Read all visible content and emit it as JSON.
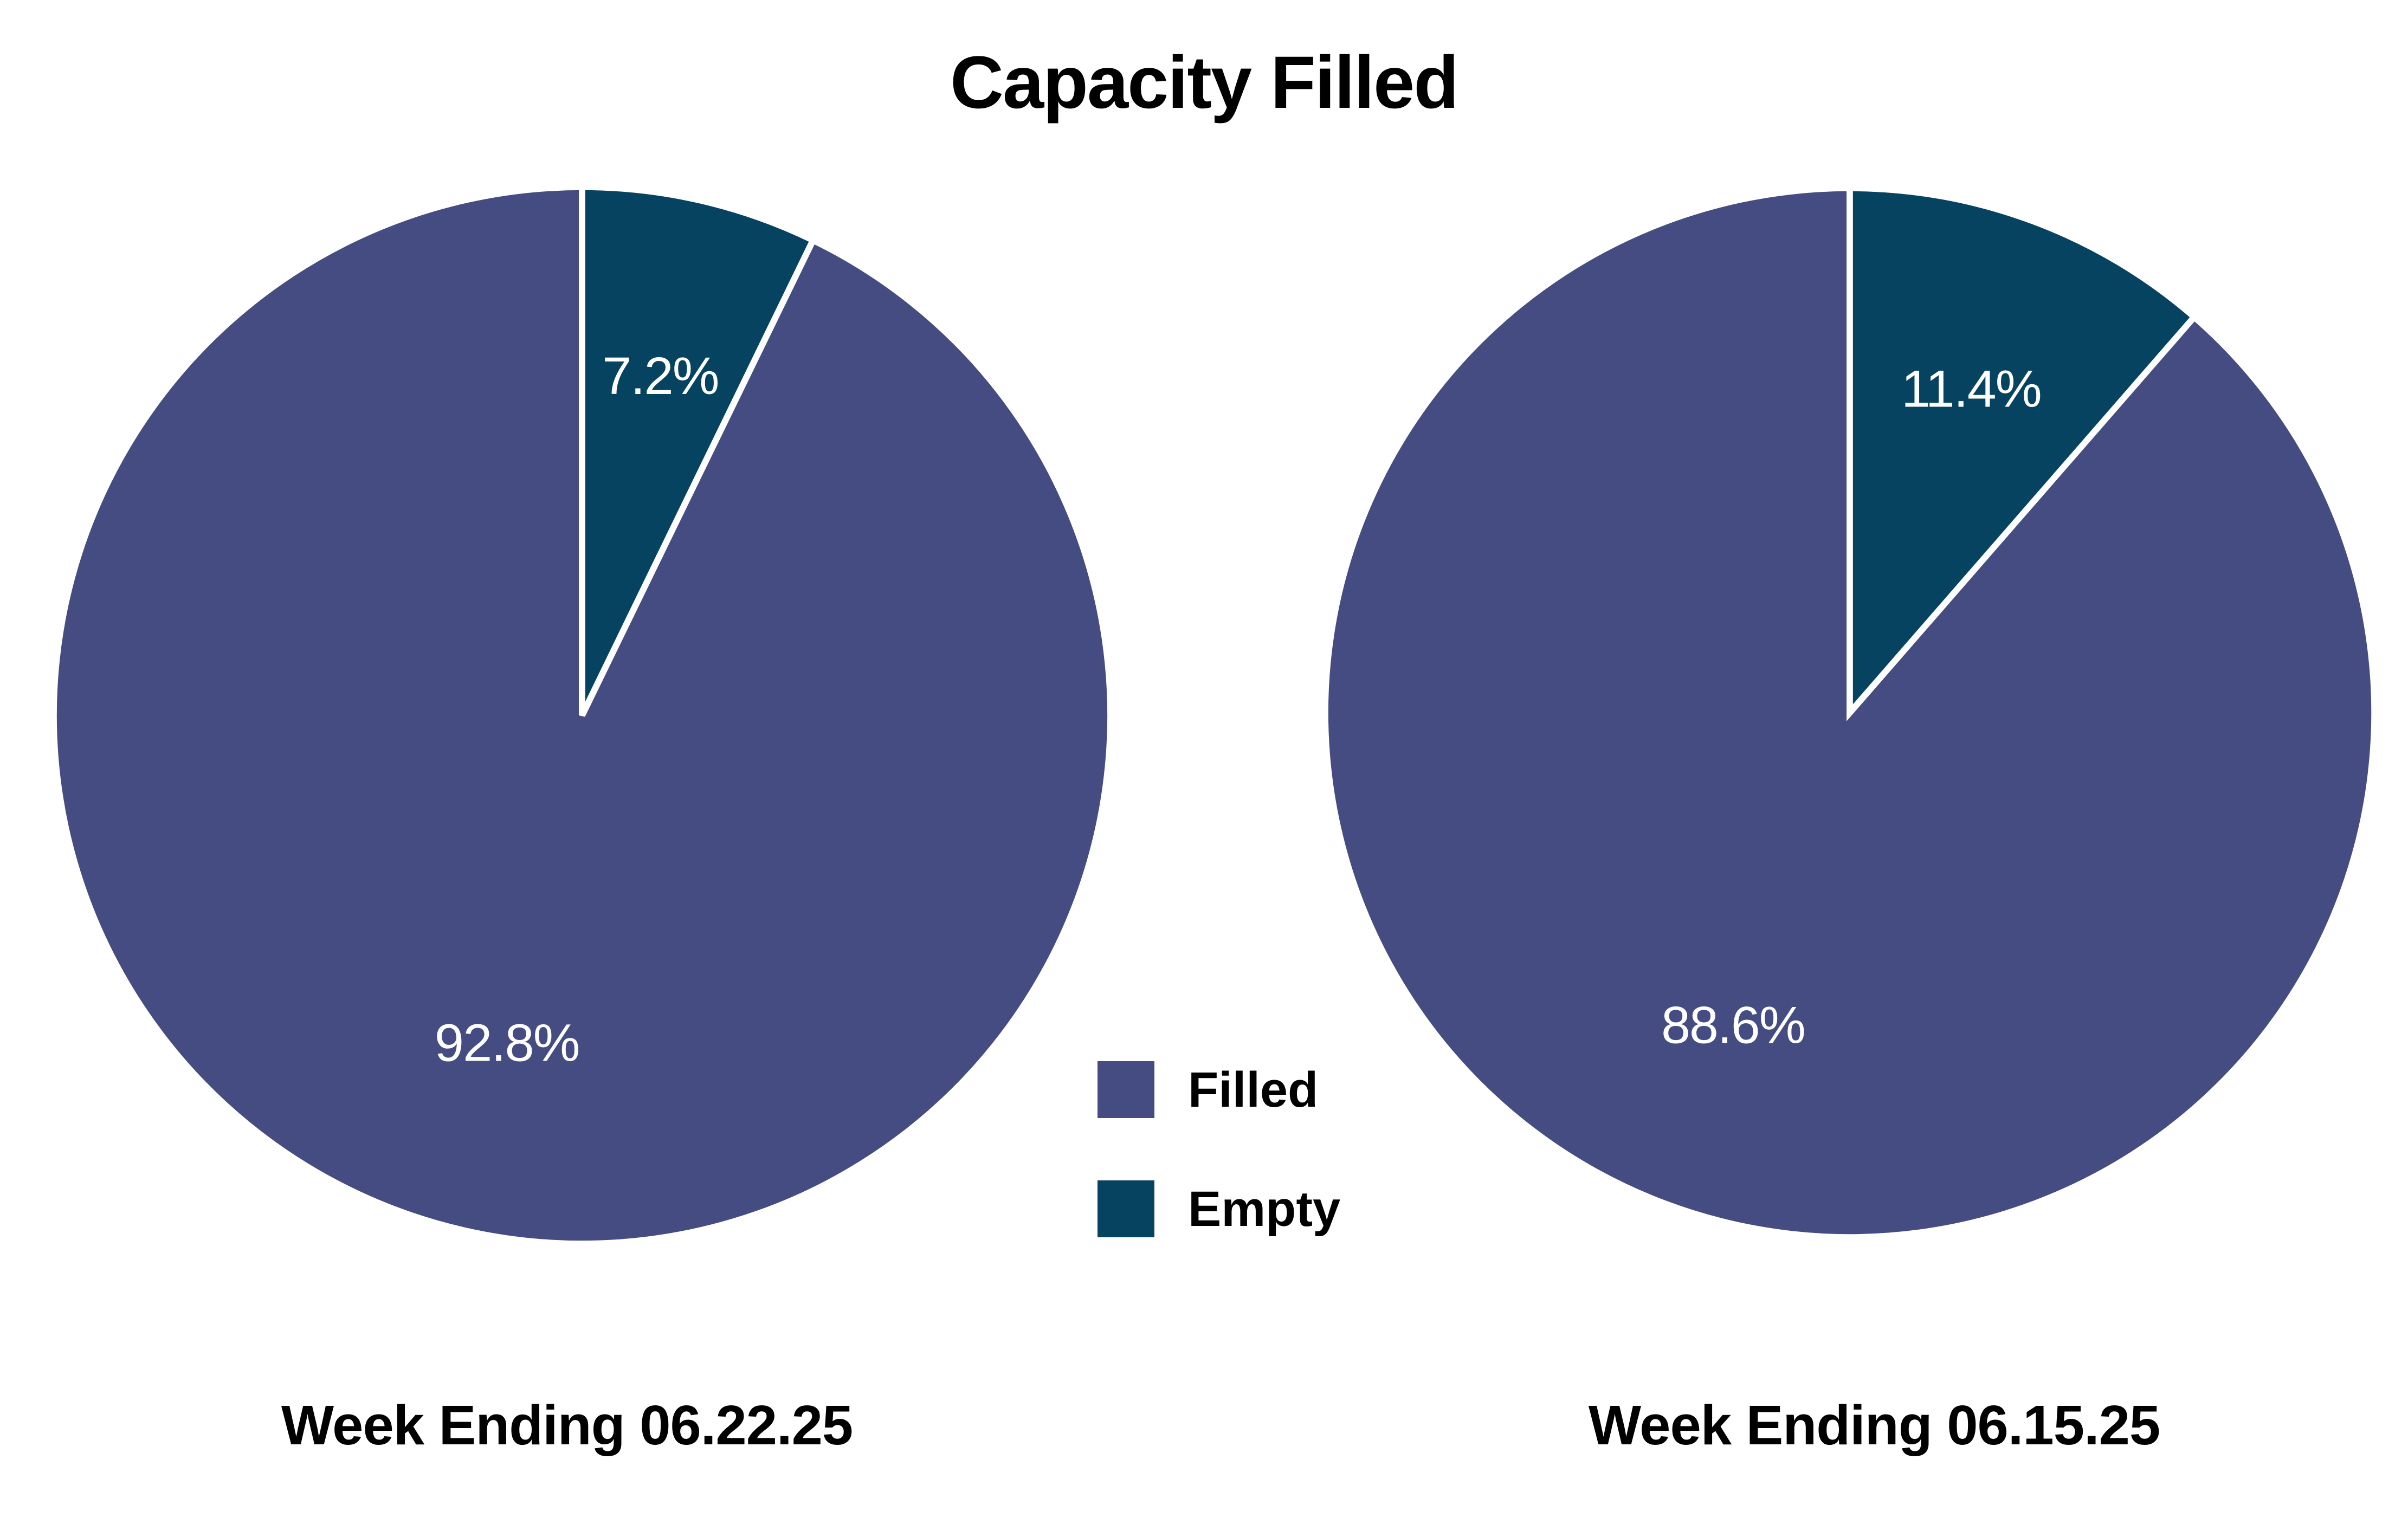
{
  "title": "Capacity Filled",
  "legend": {
    "position": "center-between-pies",
    "items": [
      {
        "label": "Filled",
        "color": "#454C82"
      },
      {
        "label": "Empty",
        "color": "#064360"
      }
    ]
  },
  "colors": {
    "filled": "#454C82",
    "empty": "#064360",
    "slice_label_text": "#FFFFFF",
    "heading_text": "#000000",
    "background": "#FFFFFF",
    "slice_separator": "#FFFFFF"
  },
  "chart_data": [
    {
      "type": "pie",
      "caption": "Week Ending 06.22.25",
      "labels": [
        "Filled",
        "Empty"
      ],
      "values": [
        92.8,
        7.2
      ],
      "unit": "%",
      "slice_labels": [
        "92.8%",
        "7.2%"
      ],
      "colors": [
        "#454C82",
        "#064360"
      ],
      "start_angle_deg": 0,
      "direction": "clockwise",
      "legend_shown": true
    },
    {
      "type": "pie",
      "caption": "Week Ending 06.15.25",
      "labels": [
        "Filled",
        "Empty"
      ],
      "values": [
        88.6,
        11.4
      ],
      "unit": "%",
      "slice_labels": [
        "88.6%",
        "11.4%"
      ],
      "colors": [
        "#454C82",
        "#064360"
      ],
      "start_angle_deg": 0,
      "direction": "clockwise",
      "legend_shown": true
    }
  ]
}
